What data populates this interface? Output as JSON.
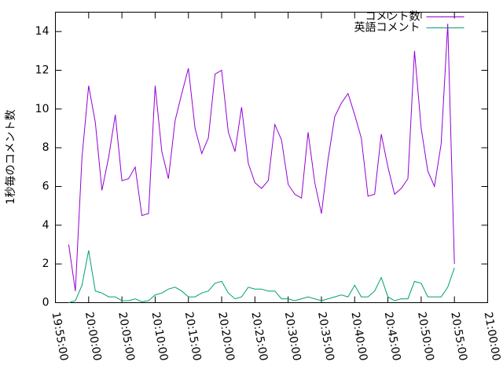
{
  "chart_data": {
    "type": "line",
    "y_label": "1秒毎のコメント数",
    "x": [
      "19:57:00",
      "19:58:00",
      "19:59:00",
      "20:00:00",
      "20:01:00",
      "20:02:00",
      "20:03:00",
      "20:04:00",
      "20:05:00",
      "20:06:00",
      "20:07:00",
      "20:08:00",
      "20:09:00",
      "20:10:00",
      "20:11:00",
      "20:12:00",
      "20:13:00",
      "20:14:00",
      "20:15:00",
      "20:16:00",
      "20:17:00",
      "20:18:00",
      "20:19:00",
      "20:20:00",
      "20:21:00",
      "20:22:00",
      "20:23:00",
      "20:24:00",
      "20:25:00",
      "20:26:00",
      "20:27:00",
      "20:28:00",
      "20:29:00",
      "20:30:00",
      "20:31:00",
      "20:32:00",
      "20:33:00",
      "20:34:00",
      "20:35:00",
      "20:36:00",
      "20:37:00",
      "20:38:00",
      "20:39:00",
      "20:40:00",
      "20:41:00",
      "20:42:00",
      "20:43:00",
      "20:44:00",
      "20:45:00",
      "20:46:00",
      "20:47:00",
      "20:48:00",
      "20:49:00",
      "20:50:00",
      "20:51:00",
      "20:52:00",
      "20:53:00",
      "20:54:00",
      "20:55:00"
    ],
    "series": [
      {
        "name": "コメント数",
        "color": "#9400d3",
        "values": [
          3.0,
          0.6,
          7.5,
          11.2,
          9.3,
          5.8,
          7.5,
          9.7,
          6.3,
          6.4,
          7.0,
          4.5,
          4.6,
          11.2,
          7.8,
          6.4,
          9.4,
          10.8,
          12.1,
          9.0,
          7.7,
          8.5,
          11.8,
          12.0,
          8.8,
          7.8,
          10.1,
          7.2,
          6.2,
          5.9,
          6.3,
          9.2,
          8.4,
          6.1,
          5.6,
          5.4,
          8.8,
          6.2,
          4.6,
          7.4,
          9.6,
          10.3,
          10.8,
          9.7,
          8.5,
          5.5,
          5.6,
          8.7,
          7.0,
          5.6,
          5.9,
          6.4,
          13.0,
          9.0,
          6.8,
          6.0,
          8.2,
          14.4,
          2.0
        ]
      },
      {
        "name": "英語コメント",
        "color": "#009e73",
        "values": [
          0.0,
          0.1,
          0.9,
          2.7,
          0.6,
          0.5,
          0.3,
          0.3,
          0.1,
          0.1,
          0.2,
          0.05,
          0.1,
          0.4,
          0.5,
          0.7,
          0.8,
          0.6,
          0.3,
          0.3,
          0.5,
          0.6,
          1.0,
          1.1,
          0.5,
          0.2,
          0.3,
          0.8,
          0.7,
          0.7,
          0.6,
          0.6,
          0.2,
          0.2,
          0.1,
          0.2,
          0.3,
          0.2,
          0.1,
          0.2,
          0.3,
          0.4,
          0.3,
          0.9,
          0.3,
          0.3,
          0.6,
          1.3,
          0.3,
          0.1,
          0.2,
          0.2,
          1.1,
          1.0,
          0.3,
          0.3,
          0.3,
          0.8,
          1.8
        ]
      }
    ],
    "xlim": [
      "19:55:00",
      "21:00:00"
    ],
    "xticks": [
      "19:55:00",
      "20:00:00",
      "20:05:00",
      "20:10:00",
      "20:15:00",
      "20:20:00",
      "20:25:00",
      "20:30:00",
      "20:35:00",
      "20:40:00",
      "20:45:00",
      "20:50:00",
      "20:55:00",
      "21:00:00"
    ],
    "ylim": [
      0,
      15
    ],
    "yticks": [
      0,
      2,
      4,
      6,
      8,
      10,
      12,
      14
    ],
    "grid": false,
    "legend": "top-right"
  }
}
